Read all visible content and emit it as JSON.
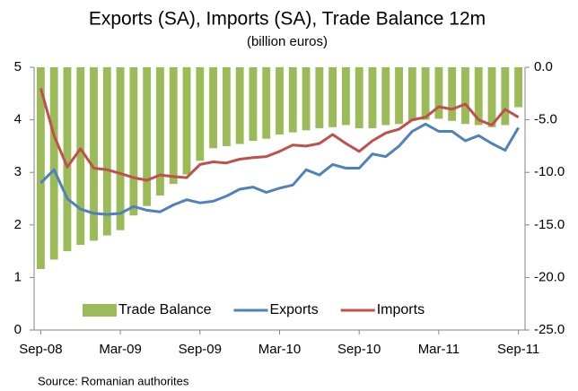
{
  "chart_data": {
    "type": "combo",
    "title": "Exports (SA), Imports (SA), Trade Balance 12m",
    "subtitle": "(billion euros)",
    "source": "Source: Romanian authorites",
    "categories": [
      "Sep-08",
      null,
      null,
      null,
      null,
      null,
      "Mar-09",
      null,
      null,
      null,
      null,
      null,
      "Sep-09",
      null,
      null,
      null,
      null,
      null,
      "Mar-10",
      null,
      null,
      null,
      null,
      null,
      "Sep-10",
      null,
      null,
      null,
      null,
      null,
      "Mar-11",
      null,
      null,
      null,
      null,
      null,
      "Sep-11"
    ],
    "ylim": [
      0,
      5
    ],
    "yticks": [
      0,
      1,
      2,
      3,
      4,
      5
    ],
    "y2lim": [
      -25,
      0
    ],
    "y2ticks": [
      {
        "value": -25,
        "label": "-25.0"
      },
      {
        "value": -20,
        "label": "-20.0"
      },
      {
        "value": -15,
        "label": "-15.0"
      },
      {
        "value": -10,
        "label": "-10.0"
      },
      {
        "value": -5,
        "label": "-5.0"
      },
      {
        "value": 0,
        "label": "0.0"
      }
    ],
    "legend": "bottom",
    "series": [
      {
        "name": "Trade Balance",
        "type": "bar",
        "axis": "y2",
        "color": "#9bbb59",
        "values": [
          -19.2,
          -18.3,
          -17.5,
          -16.9,
          -16.5,
          -16.0,
          -15.5,
          -14.1,
          -13.2,
          -12.2,
          -11.1,
          -10.2,
          -8.9,
          -7.7,
          -7.5,
          -7.3,
          -7.0,
          -6.8,
          -6.4,
          -6.2,
          -6.0,
          -5.8,
          -5.7,
          -5.5,
          -5.8,
          -5.8,
          -5.5,
          -5.4,
          -5.1,
          -5.0,
          -4.9,
          -5.1,
          -5.4,
          -5.5,
          -5.7,
          -5.5,
          -3.8
        ]
      },
      {
        "name": "Exports",
        "type": "line",
        "axis": "y",
        "color": "#4f81bd",
        "values": [
          2.8,
          3.05,
          2.5,
          2.3,
          2.22,
          2.2,
          2.22,
          2.35,
          2.28,
          2.25,
          2.38,
          2.48,
          2.42,
          2.45,
          2.55,
          2.68,
          2.72,
          2.62,
          2.7,
          2.76,
          3.05,
          2.95,
          3.15,
          3.08,
          3.08,
          3.35,
          3.3,
          3.5,
          3.78,
          3.92,
          3.78,
          3.78,
          3.6,
          3.7,
          3.55,
          3.42,
          3.85
        ]
      },
      {
        "name": "Imports",
        "type": "line",
        "axis": "y",
        "color": "#c0504d",
        "values": [
          4.6,
          3.7,
          3.1,
          3.45,
          3.08,
          3.05,
          2.98,
          2.9,
          2.85,
          2.95,
          2.92,
          2.9,
          3.15,
          3.2,
          3.18,
          3.25,
          3.28,
          3.3,
          3.4,
          3.52,
          3.5,
          3.55,
          3.72,
          3.55,
          3.4,
          3.6,
          3.75,
          3.82,
          4.0,
          4.05,
          4.25,
          4.2,
          4.3,
          4.0,
          3.9,
          4.2,
          4.05
        ]
      }
    ]
  }
}
